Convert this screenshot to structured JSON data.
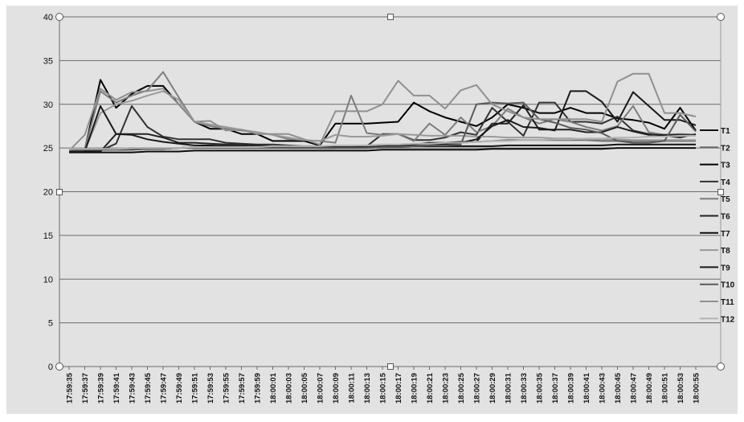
{
  "chart_data": {
    "type": "line",
    "title": "",
    "xlabel": "",
    "ylabel": "",
    "ylim": [
      0,
      40
    ],
    "yticks": [
      "0",
      "5",
      "10",
      "15",
      "20",
      "25",
      "30",
      "35",
      "40"
    ],
    "grid": true,
    "legend_position": "right",
    "categories": [
      "17:59:35",
      "17:59:37",
      "17:59:39",
      "17:59:41",
      "17:59:43",
      "17:59:45",
      "17:59:47",
      "17:59:49",
      "17:59:51",
      "17:59:53",
      "17:59:55",
      "17:59:57",
      "17:59:59",
      "18:00:01",
      "18:00:03",
      "18:00:05",
      "18:00:07",
      "18:00:09",
      "18:00:11",
      "18:00:13",
      "18:00:15",
      "18:00:17",
      "18:00:19",
      "18:00:21",
      "18:00:23",
      "18:00:25",
      "18:00:27",
      "18:00:29",
      "18:00:31",
      "18:00:33",
      "18:00:35",
      "18:00:37",
      "18:00:39",
      "18:00:41",
      "18:00:43",
      "18:00:45",
      "18:00:47",
      "18:00:49",
      "18:00:51",
      "18:00:53",
      "18:00:55"
    ],
    "series": [
      {
        "name": "T1",
        "color": "#111111",
        "values": [
          24.8,
          24.8,
          24.8,
          24.8,
          24.8,
          24.9,
          24.9,
          25.0,
          25.1,
          25.2,
          25.2,
          25.2,
          25.1,
          25.1,
          25.0,
          25.0,
          25.0,
          25.0,
          25.1,
          25.1,
          25.1,
          25.2,
          25.2,
          25.2,
          25.2,
          25.2,
          25.2,
          25.2,
          25.3,
          25.3,
          25.3,
          25.3,
          25.3,
          25.3,
          25.3,
          25.4,
          25.4,
          25.4,
          25.4,
          25.4,
          25.4
        ]
      },
      {
        "name": "T2",
        "color": "#6a6a6a",
        "values": [
          24.9,
          24.9,
          24.9,
          24.9,
          25.0,
          25.0,
          25.0,
          25.0,
          25.1,
          25.1,
          25.1,
          25.1,
          25.1,
          25.1,
          25.1,
          25.1,
          25.1,
          25.1,
          25.1,
          25.1,
          25.2,
          25.2,
          25.3,
          25.4,
          25.5,
          25.6,
          25.7,
          25.8,
          25.9,
          25.9,
          25.9,
          25.9,
          25.9,
          25.9,
          25.8,
          25.8,
          25.8,
          25.8,
          25.8,
          25.8,
          25.8
        ]
      },
      {
        "name": "T3",
        "color": "#000000",
        "values": [
          24.8,
          24.8,
          32.8,
          29.6,
          31.2,
          32.1,
          32.1,
          30.0,
          28.0,
          27.2,
          27.2,
          26.6,
          26.6,
          25.8,
          25.8,
          25.8,
          25.3,
          27.8,
          27.8,
          27.8,
          27.9,
          28.0,
          30.2,
          29.2,
          28.5,
          28.0,
          27.5,
          28.5,
          30.0,
          29.6,
          29.0,
          29.0,
          29.6,
          29.0,
          29.0,
          28.4,
          28.2,
          27.9,
          27.2,
          29.6,
          27.0
        ]
      },
      {
        "name": "T4",
        "color": "#333333",
        "values": [
          24.7,
          24.7,
          24.7,
          25.5,
          29.8,
          27.4,
          26.3,
          26.0,
          26.0,
          26.0,
          25.6,
          25.5,
          25.4,
          25.4,
          25.3,
          25.2,
          25.2,
          25.1,
          25.1,
          25.2,
          26.6,
          26.6,
          25.9,
          25.9,
          26.2,
          26.8,
          26.5,
          29.6,
          28.0,
          26.4,
          30.2,
          30.2,
          28.0,
          28.0,
          27.8,
          28.6,
          27.0,
          26.6,
          26.4,
          26.2,
          26.6
        ]
      },
      {
        "name": "T5",
        "color": "#7d7d7d",
        "values": [
          24.9,
          24.9,
          31.5,
          30.2,
          31.0,
          31.6,
          33.7,
          30.8,
          28.0,
          27.5,
          27.2,
          27.0,
          26.8,
          26.5,
          26.0,
          25.9,
          25.8,
          25.6,
          31.0,
          26.7,
          26.5,
          26.6,
          25.8,
          27.8,
          26.5,
          28.5,
          26.8,
          27.5,
          29.5,
          28.5,
          27.8,
          28.3,
          28.0,
          27.4,
          27.0,
          27.5,
          29.8,
          26.8,
          26.5,
          26.6,
          26.5
        ]
      },
      {
        "name": "T6",
        "color": "#222222",
        "values": [
          24.6,
          24.6,
          24.6,
          26.6,
          26.6,
          26.6,
          26.2,
          25.6,
          25.6,
          25.5,
          25.4,
          25.4,
          25.3,
          25.2,
          25.1,
          25.1,
          25.1,
          25.1,
          25.1,
          25.1,
          25.2,
          25.3,
          25.4,
          25.6,
          25.6,
          25.7,
          25.7,
          27.8,
          27.8,
          29.9,
          27.1,
          27.1,
          27.1,
          26.8,
          26.8,
          27.4,
          26.9,
          26.5,
          26.5,
          26.5,
          26.5
        ]
      },
      {
        "name": "T7",
        "color": "#0d0d0d",
        "values": [
          24.5,
          24.5,
          24.5,
          24.5,
          24.5,
          24.6,
          24.6,
          24.6,
          24.7,
          24.7,
          24.7,
          24.7,
          24.7,
          24.7,
          24.7,
          24.7,
          24.7,
          24.7,
          24.7,
          24.7,
          24.8,
          24.8,
          24.8,
          24.8,
          24.8,
          24.8,
          24.8,
          24.9,
          24.9,
          24.9,
          24.9,
          24.9,
          24.9,
          24.9,
          24.9,
          25.0,
          25.0,
          25.0,
          25.0,
          25.0,
          25.0
        ]
      },
      {
        "name": "T8",
        "color": "#9a9a9a",
        "values": [
          24.7,
          24.7,
          29.0,
          30.0,
          30.4,
          31.0,
          31.5,
          30.5,
          28.0,
          27.7,
          27.4,
          27.1,
          26.8,
          26.5,
          26.2,
          25.9,
          25.8,
          26.5,
          26.3,
          26.3,
          26.4,
          26.6,
          26.5,
          26.4,
          26.4,
          26.4,
          26.3,
          26.3,
          26.2,
          26.2,
          26.2,
          26.1,
          26.1,
          26.0,
          26.0,
          26.0,
          25.9,
          25.9,
          25.9,
          25.9,
          25.9
        ]
      },
      {
        "name": "T9",
        "color": "#1a1a1a",
        "values": [
          24.6,
          24.6,
          29.8,
          26.6,
          26.5,
          26.0,
          25.7,
          25.5,
          25.3,
          25.3,
          25.2,
          25.2,
          25.1,
          25.1,
          25.1,
          25.1,
          25.0,
          25.0,
          25.0,
          25.0,
          25.1,
          25.1,
          25.2,
          25.3,
          25.4,
          25.6,
          26.0,
          27.5,
          28.2,
          27.4,
          27.3,
          27.0,
          31.5,
          31.5,
          30.3,
          28.0,
          31.4,
          29.8,
          28.2,
          28.2,
          27.6
        ]
      },
      {
        "name": "T10",
        "color": "#5a5a5a",
        "values": [
          24.8,
          24.8,
          24.8,
          24.8,
          24.8,
          24.9,
          24.9,
          25.0,
          25.0,
          25.0,
          25.0,
          25.0,
          25.0,
          25.0,
          25.0,
          25.0,
          25.0,
          25.0,
          25.0,
          25.0,
          25.1,
          25.1,
          25.2,
          25.3,
          25.3,
          25.4,
          30.0,
          30.2,
          30.1,
          30.2,
          28.3,
          27.9,
          27.3,
          27.1,
          26.7,
          25.8,
          25.6,
          25.6,
          25.8,
          28.8,
          26.9
        ]
      },
      {
        "name": "T11",
        "color": "#909090",
        "values": [
          24.7,
          26.5,
          31.8,
          30.5,
          31.4,
          31.5,
          31.8,
          30.0,
          28.0,
          28.1,
          27.0,
          27.1,
          26.6,
          26.6,
          26.6,
          26.0,
          25.4,
          29.2,
          29.2,
          29.2,
          30.0,
          32.7,
          31.0,
          31.0,
          29.5,
          31.6,
          32.2,
          30.0,
          29.2,
          28.5,
          28.3,
          28.3,
          28.3,
          28.3,
          28.0,
          32.6,
          33.5,
          33.5,
          29.0,
          29.0,
          28.6
        ]
      },
      {
        "name": "T12",
        "color": "#b3b3b3",
        "values": [
          24.9,
          24.9,
          24.9,
          24.9,
          25.0,
          25.0,
          25.0,
          25.0,
          25.1,
          25.1,
          25.1,
          25.1,
          25.1,
          25.2,
          25.2,
          25.2,
          25.2,
          25.3,
          25.3,
          25.3,
          25.4,
          25.4,
          25.5,
          25.5,
          25.6,
          25.6,
          25.7,
          25.8,
          25.8,
          25.9,
          25.9,
          26.0,
          26.0,
          26.1,
          26.1,
          26.2,
          26.2,
          26.3,
          26.3,
          26.4,
          26.4
        ]
      }
    ]
  }
}
